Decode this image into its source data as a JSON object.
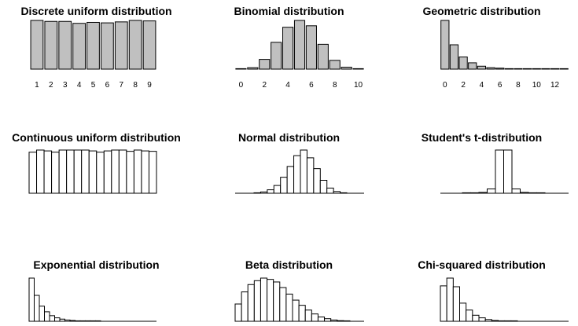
{
  "chart_data": [
    {
      "type": "bar",
      "title": "Discrete uniform distribution",
      "style": "gray",
      "categories": [
        "1",
        "2",
        "3",
        "4",
        "5",
        "6",
        "7",
        "8",
        "9"
      ],
      "values": [
        100,
        98,
        98,
        94,
        96,
        95,
        97,
        100,
        99
      ],
      "xticks": [
        "1",
        "2",
        "3",
        "4",
        "5",
        "6",
        "7",
        "8",
        "9"
      ],
      "ylim": [
        0,
        100
      ]
    },
    {
      "type": "bar",
      "title": "Binomial distribution",
      "style": "gray",
      "categories": [
        "0",
        "1",
        "2",
        "3",
        "4",
        "5",
        "6",
        "7",
        "8",
        "9",
        "10"
      ],
      "values": [
        0.3,
        3,
        20,
        55,
        86,
        100,
        89,
        51,
        18,
        4,
        0.5
      ],
      "xticks": [
        "0",
        "2",
        "4",
        "6",
        "8",
        "10"
      ],
      "ylim": [
        0,
        100
      ]
    },
    {
      "type": "bar",
      "title": "Geometric distribution",
      "style": "gray",
      "categories": [
        "0",
        "1",
        "2",
        "3",
        "4",
        "5",
        "6",
        "7",
        "8",
        "9",
        "10",
        "11",
        "12",
        "13"
      ],
      "values": [
        100,
        50,
        25,
        13,
        6,
        3,
        2,
        1,
        0.5,
        0.3,
        0.2,
        0.1,
        0.1,
        0.1
      ],
      "xticks": [
        "0",
        "2",
        "4",
        "6",
        "8",
        "10",
        "12"
      ],
      "ylim": [
        0,
        100
      ]
    },
    {
      "type": "bar",
      "title": "Continuous uniform distribution",
      "style": "hist",
      "values": [
        95,
        100,
        98,
        95,
        100,
        100,
        100,
        100,
        98,
        95,
        98,
        100,
        100,
        97,
        100,
        98,
        97
      ],
      "ylim": [
        0,
        100
      ]
    },
    {
      "type": "bar",
      "title": "Normal distribution",
      "style": "hist",
      "values": [
        1,
        3,
        8,
        18,
        37,
        62,
        87,
        100,
        82,
        57,
        30,
        12,
        4,
        1
      ],
      "ylim": [
        0,
        100
      ]
    },
    {
      "type": "bar",
      "title": "Student's t-distribution",
      "style": "hist",
      "values": [
        0.5,
        1,
        2,
        10,
        100,
        100,
        10,
        2,
        1,
        0.5
      ],
      "ylim": [
        0,
        100
      ]
    },
    {
      "type": "bar",
      "title": "Exponential distribution",
      "style": "hist",
      "values": [
        100,
        60,
        35,
        22,
        13,
        8,
        5,
        3,
        2,
        1,
        0.5,
        0.3,
        0.2,
        0.1
      ],
      "ylim": [
        0,
        100
      ]
    },
    {
      "type": "bar",
      "title": "Beta distribution",
      "style": "hist",
      "values": [
        40,
        68,
        85,
        94,
        100,
        97,
        91,
        78,
        63,
        49,
        37,
        26,
        17,
        10,
        6,
        3,
        1.5,
        0.5
      ],
      "ylim": [
        0,
        100
      ]
    },
    {
      "type": "bar",
      "title": "Chi-squared distribution",
      "style": "hist",
      "values": [
        82,
        100,
        80,
        42,
        26,
        14,
        8,
        4,
        2,
        1,
        0.5,
        0.3
      ],
      "ylim": [
        0,
        100
      ]
    }
  ]
}
